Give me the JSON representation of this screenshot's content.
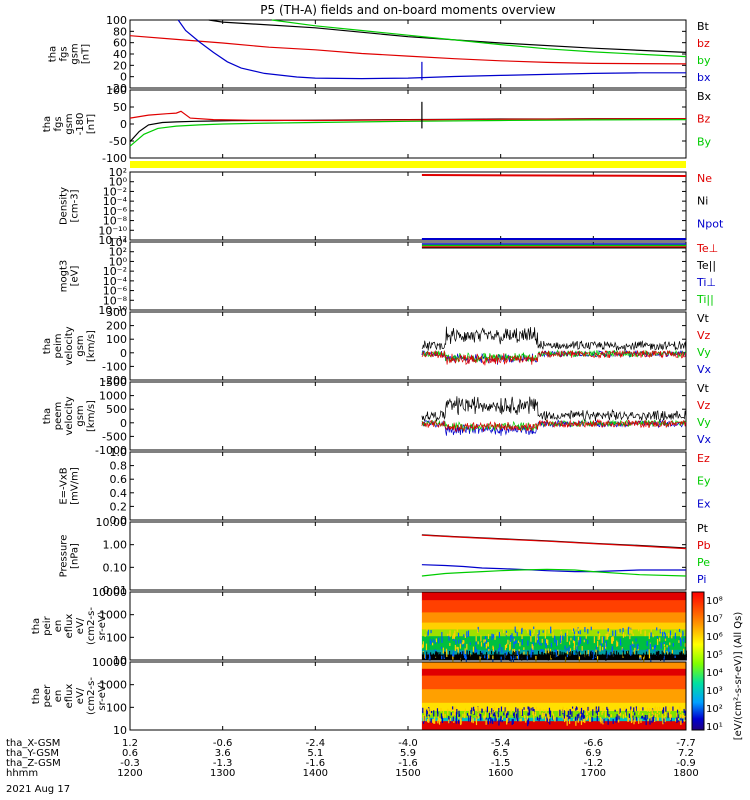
{
  "chart_data": {
    "type": "line",
    "title": "P5 (TH-A) fields and on-board moments overview",
    "xaxis": {
      "ticks_hhmm": [
        "1200",
        "1300",
        "1400",
        "1500",
        "1600",
        "1700",
        "1800"
      ],
      "rows": [
        {
          "label": "tha_X-GSM",
          "values": [
            "1.2",
            "-0.6",
            "-2.4",
            "-4.0",
            "-5.4",
            "-6.6",
            "-7.7"
          ]
        },
        {
          "label": "tha_Y-GSM",
          "values": [
            "0.6",
            "3.6",
            "5.1",
            "5.9",
            "6.5",
            "6.9",
            "7.2"
          ]
        },
        {
          "label": "tha_Z-GSM",
          "values": [
            "-0.3",
            "-1.3",
            "-1.6",
            "-1.6",
            "-1.5",
            "-1.2",
            "-0.9"
          ]
        },
        {
          "label": "hhmm",
          "values": [
            "1200",
            "1300",
            "1400",
            "1500",
            "1600",
            "1700",
            "1800"
          ]
        }
      ],
      "date": "2021 Aug 17",
      "xlim": [
        1200,
        1800
      ],
      "data_start": 1515
    },
    "panels": [
      {
        "id": "fgs-gsm",
        "ylabel": [
          "tha",
          "fgs",
          "gsm",
          "[nT]"
        ],
        "ticks": [
          "100",
          "80",
          "60",
          "40",
          "20",
          "0",
          "-20"
        ],
        "ylim": [
          -30,
          100
        ],
        "legend": [
          {
            "name": "Bt",
            "color": "#000000"
          },
          {
            "name": "bz",
            "color": "#e00000"
          },
          {
            "name": "by",
            "color": "#00cc00"
          },
          {
            "name": "bx",
            "color": "#0000cc"
          }
        ],
        "series": [
          {
            "name": "Bt",
            "color": "#000000",
            "x": [
              1285,
              1300,
              1400,
              1500,
              1600,
              1700,
              1800
            ],
            "y": [
              100,
              96,
              85,
              68,
              56,
              46,
              38
            ]
          },
          {
            "name": "bz",
            "color": "#e00000",
            "x": [
              1200,
              1250,
              1300,
              1350,
              1400,
              1450,
              1500,
              1550,
              1600,
              1650,
              1700,
              1800
            ],
            "y": [
              70,
              63,
              56,
              48,
              43,
              36,
              31,
              26,
              22,
              19,
              17,
              16
            ]
          },
          {
            "name": "by",
            "color": "#00cc00",
            "x": [
              1353,
              1400,
              1450,
              1500,
              1550,
              1600,
              1650,
              1700,
              1800
            ],
            "y": [
              100,
              89,
              80,
              71,
              62,
              53,
              45,
              39,
              30
            ]
          },
          {
            "name": "bx",
            "color": "#0000cc",
            "x": [
              1252,
              1260,
              1275,
              1290,
              1305,
              1320,
              1345,
              1380,
              1400,
              1450,
              1500,
              1550,
              1600,
              1650,
              1700,
              1750,
              1800
            ],
            "y": [
              100,
              80,
              58,
              38,
              20,
              8,
              -2,
              -9,
              -11,
              -12,
              -11,
              -8,
              -6,
              -4,
              -2,
              -1,
              -1
            ]
          }
        ]
      },
      {
        "id": "fgs-gse",
        "ylabel": [
          "tha",
          "fgs",
          "gsm",
          "-180",
          "[nT]"
        ],
        "ticks": [
          "100",
          "50",
          "0",
          "-50",
          "-100"
        ],
        "ylim": [
          -130,
          100
        ],
        "legend": [
          {
            "name": "Bx",
            "color": "#000000"
          },
          {
            "name": "Bz",
            "color": "#e00000"
          },
          {
            "name": "By",
            "color": "#00cc00"
          }
        ],
        "series": [
          {
            "name": "black",
            "color": "#000000",
            "x": [
              1200,
              1210,
              1220,
              1235,
              1250,
              1270,
              1290,
              1310,
              1350,
              1400,
              1450,
              1500,
              1550,
              1600,
              1650,
              1700,
              1750,
              1800
            ],
            "y": [
              -75,
              -40,
              -18,
              -10,
              -8,
              -6,
              -5,
              -4,
              -3,
              -2,
              -1,
              0,
              1,
              2,
              2,
              3,
              3,
              3
            ]
          },
          {
            "name": "red",
            "color": "#e00000",
            "x": [
              1200,
              1220,
              1240,
              1250,
              1255,
              1265,
              1290,
              1330,
              1400,
              1500,
              1600,
              1700,
              1800
            ],
            "y": [
              5,
              15,
              20,
              22,
              28,
              5,
              0,
              -2,
              -3,
              -1,
              1,
              2,
              3
            ]
          },
          {
            "name": "green",
            "color": "#00cc00",
            "x": [
              1200,
              1215,
              1230,
              1250,
              1275,
              1300,
              1350,
              1400,
              1450,
              1500,
              1600,
              1700,
              1800
            ],
            "y": [
              -90,
              -50,
              -30,
              -22,
              -18,
              -15,
              -12,
              -10,
              -8,
              -6,
              -3,
              -1,
              0
            ]
          }
        ]
      },
      {
        "id": "density",
        "ylabel": [
          "Density",
          "[cm-3]"
        ],
        "ticks": [
          "10²",
          "10⁰",
          "10⁻²",
          "10⁻⁴",
          "10⁻⁶",
          "10⁻⁸",
          "10⁻¹⁰",
          "10⁻¹²"
        ],
        "legend": [
          {
            "name": "Ne",
            "color": "#e00000"
          },
          {
            "name": "Ni",
            "color": "#000000"
          },
          {
            "name": "Npot",
            "color": "#0000cc"
          }
        ]
      },
      {
        "id": "temperature",
        "ylabel": [
          "mogt3",
          "[eV]"
        ],
        "ticks": [
          "10⁴",
          "10²",
          "10⁰",
          "10⁻²",
          "10⁻⁴",
          "10⁻⁶",
          "10⁻⁸",
          "10⁻¹⁰"
        ],
        "legend": [
          {
            "name": "Te⊥",
            "color": "#e00000"
          },
          {
            "name": "Te||",
            "color": "#000000"
          },
          {
            "name": "Ti⊥",
            "color": "#0000cc"
          },
          {
            "name": "Ti||",
            "color": "#00cc00"
          }
        ]
      },
      {
        "id": "peim-velocity",
        "ylabel": [
          "tha",
          "peim",
          "velocity",
          "gsm",
          "[km/s]"
        ],
        "ticks": [
          "300",
          "200",
          "100",
          "0",
          "-100",
          "-200"
        ],
        "ylim": [
          -200,
          300
        ],
        "legend": [
          {
            "name": "Vt",
            "color": "#000000"
          },
          {
            "name": "Vz",
            "color": "#e00000"
          },
          {
            "name": "Vy",
            "color": "#00cc00"
          },
          {
            "name": "Vx",
            "color": "#0000cc"
          }
        ]
      },
      {
        "id": "peem-velocity",
        "ylabel": [
          "tha",
          "peem",
          "velocity",
          "gsm",
          "[km/s]"
        ],
        "ticks": [
          "1500",
          "1000",
          "500",
          "0",
          "-500",
          "-1000"
        ],
        "ylim": [
          -1000,
          1500
        ],
        "legend": [
          {
            "name": "Vt",
            "color": "#000000"
          },
          {
            "name": "Vz",
            "color": "#e00000"
          },
          {
            "name": "Vy",
            "color": "#00cc00"
          },
          {
            "name": "Vx",
            "color": "#0000cc"
          }
        ]
      },
      {
        "id": "efield",
        "ylabel": [
          "E=-VxB",
          "[mV/m]"
        ],
        "ticks": [
          "1.0",
          "0.8",
          "0.6",
          "0.4",
          "0.2",
          "0.0"
        ],
        "ylim": [
          0,
          1
        ],
        "legend": [
          {
            "name": "Ez",
            "color": "#e00000"
          },
          {
            "name": "Ey",
            "color": "#00cc00"
          },
          {
            "name": "Ex",
            "color": "#0000cc"
          }
        ]
      },
      {
        "id": "pressure",
        "ylabel": [
          "Pressure",
          "[nPa]"
        ],
        "ticks": [
          "10.00",
          "1.00",
          "0.10",
          "0.01"
        ],
        "ylim": [
          0.006,
          15
        ],
        "log": true,
        "legend": [
          {
            "name": "Pt",
            "color": "#000000"
          },
          {
            "name": "Pb",
            "color": "#e00000"
          },
          {
            "name": "Pe",
            "color": "#00cc00"
          },
          {
            "name": "Pi",
            "color": "#0000cc"
          }
        ],
        "series": [
          {
            "name": "Pt",
            "color": "#000000",
            "x": [
              1515,
              1550,
              1600,
              1650,
              1700,
              1750,
              1800
            ],
            "y": [
              3.4,
              2.8,
              2.2,
              1.7,
              1.3,
              1.0,
              0.75
            ]
          },
          {
            "name": "Pb",
            "color": "#e00000",
            "x": [
              1515,
              1550,
              1600,
              1650,
              1700,
              1750,
              1800
            ],
            "y": [
              3.3,
              2.7,
              2.1,
              1.65,
              1.25,
              0.95,
              0.7
            ]
          },
          {
            "name": "Pi",
            "color": "#0000cc",
            "x": [
              1515,
              1540,
              1560,
              1580,
              1600,
              1620,
              1650,
              1680,
              1700,
              1750,
              1800
            ],
            "y": [
              0.11,
              0.1,
              0.09,
              0.075,
              0.07,
              0.065,
              0.055,
              0.05,
              0.05,
              0.06,
              0.06
            ]
          },
          {
            "name": "Pe",
            "color": "#00cc00",
            "x": [
              1515,
              1540,
              1560,
              1580,
              1600,
              1620,
              1650,
              1680,
              1700,
              1750,
              1800
            ],
            "y": [
              0.03,
              0.04,
              0.045,
              0.05,
              0.055,
              0.06,
              0.065,
              0.06,
              0.05,
              0.035,
              0.03
            ]
          }
        ]
      },
      {
        "id": "peir-spectrogram",
        "ylabel": [
          "tha",
          "peir",
          "en",
          "eflux",
          "eV/",
          "(cm2-s-",
          "sr-eV)"
        ],
        "ticks": [
          "10000",
          "1000",
          "100",
          "10"
        ],
        "ylim": [
          5,
          30000
        ],
        "log": true
      },
      {
        "id": "peer-spectrogram",
        "ylabel": [
          "tha",
          "peer",
          "en",
          "eflux",
          "eV/",
          "(cm2-s-",
          "sr-eV)"
        ],
        "ticks": [
          "10000",
          "1000",
          "100",
          "10"
        ],
        "ylim": [
          5,
          30000
        ],
        "log": true
      }
    ],
    "colorbar": {
      "label": "[eV/(cm²-s-sr-eV)] (All Qs)",
      "ticks": [
        "10⁸",
        "10⁷",
        "10⁶",
        "10⁵",
        "10⁴",
        "10³",
        "10²",
        "10¹"
      ]
    },
    "colors": {
      "black": "#000000",
      "red": "#e00000",
      "green": "#00cc00",
      "blue": "#0000cc",
      "bar": "#ffff00"
    }
  }
}
